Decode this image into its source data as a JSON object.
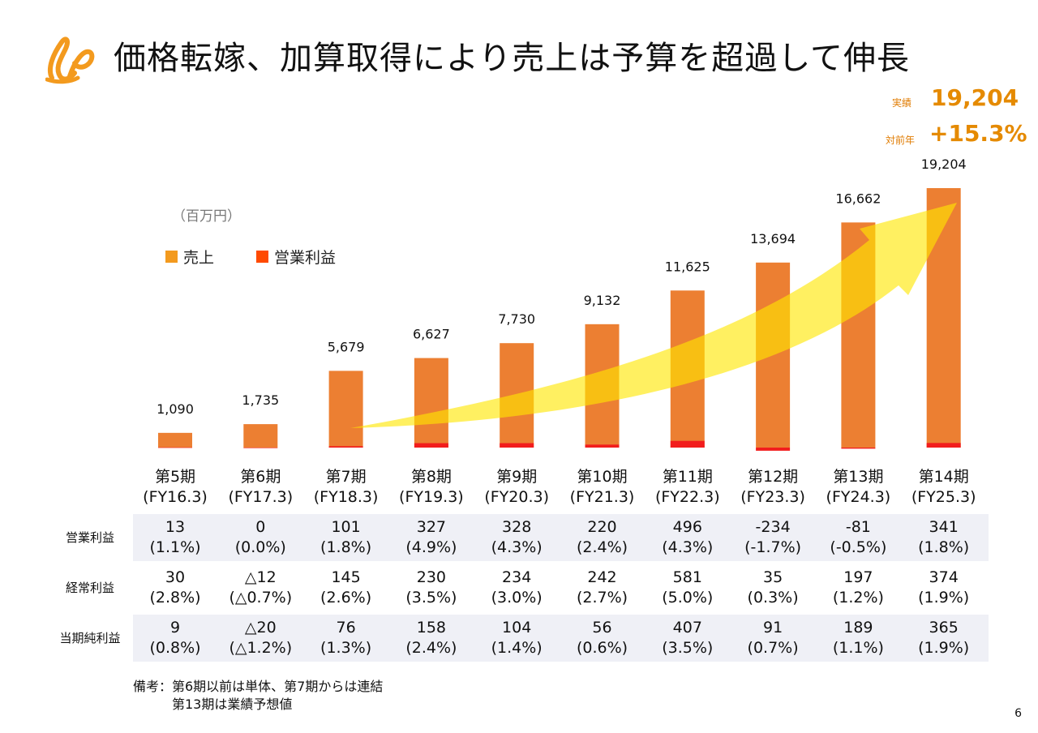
{
  "slide": {
    "title": "価格転嫁、加算取得により売上は予算を超過して伸長",
    "page_number": "6",
    "logo": "company-logo"
  },
  "kpi": {
    "actual_label": "実績",
    "actual_value": "19,204",
    "yoy_label": "対前年",
    "yoy_value": "+15.3%"
  },
  "chart_data": {
    "type": "bar",
    "unit": "（百万円）",
    "categories": [
      "第5期",
      "第6期",
      "第7期",
      "第8期",
      "第9期",
      "第10期",
      "第11期",
      "第12期",
      "第13期",
      "第14期"
    ],
    "fiscal_years": [
      "(FY16.3)",
      "(FY17.3)",
      "(FY18.3)",
      "(FY19.3)",
      "(FY20.3)",
      "(FY21.3)",
      "(FY22.3)",
      "(FY23.3)",
      "(FY24.3)",
      "(FY25.3)"
    ],
    "series": [
      {
        "name": "売上",
        "color": "#ec7f32",
        "values": [
          1090,
          1735,
          5679,
          6627,
          7730,
          9132,
          11625,
          13694,
          16662,
          19204
        ],
        "labels": [
          "1,090",
          "1,735",
          "5,679",
          "6,627",
          "7,730",
          "9,132",
          "11,625",
          "13,694",
          "16,662",
          "19,204"
        ]
      },
      {
        "name": "営業利益",
        "color": "#f21d1d",
        "values": [
          13,
          0,
          101,
          327,
          328,
          220,
          496,
          -234,
          -81,
          341
        ]
      }
    ],
    "ylim": [
      -500,
      20000
    ],
    "grid": false,
    "legend_position": "top-left",
    "annotations": [
      "yellow-growth-arrow"
    ]
  },
  "table": {
    "rows": [
      {
        "label": "営業利益",
        "shaded": true,
        "values": [
          "13",
          "0",
          "101",
          "327",
          "328",
          "220",
          "496",
          "-234",
          "-81",
          "341"
        ],
        "ratios": [
          "(1.1%)",
          "(0.0%)",
          "(1.8%)",
          "(4.9%)",
          "(4.3%)",
          "(2.4%)",
          "(4.3%)",
          "(-1.7%)",
          "(-0.5%)",
          "(1.8%)"
        ]
      },
      {
        "label": "経常利益",
        "shaded": false,
        "values": [
          "30",
          "△12",
          "145",
          "230",
          "234",
          "242",
          "581",
          "35",
          "197",
          "374"
        ],
        "ratios": [
          "(2.8%)",
          "(△0.7%)",
          "(2.6%)",
          "(3.5%)",
          "(3.0%)",
          "(2.7%)",
          "(5.0%)",
          "(0.3%)",
          "(1.2%)",
          "(1.9%)"
        ]
      },
      {
        "label": "当期純利益",
        "shaded": true,
        "values": [
          "9",
          "△20",
          "76",
          "158",
          "104",
          "56",
          "407",
          "91",
          "189",
          "365"
        ],
        "ratios": [
          "(0.8%)",
          "(△1.2%)",
          "(1.3%)",
          "(2.4%)",
          "(1.4%)",
          "(0.6%)",
          "(3.5%)",
          "(0.7%)",
          "(1.1%)",
          "(1.9%)"
        ]
      }
    ]
  },
  "note": {
    "line1": "備考：第6期以前は単体、第7期からは連結",
    "line2": "　　　第13期は業績予想値"
  }
}
